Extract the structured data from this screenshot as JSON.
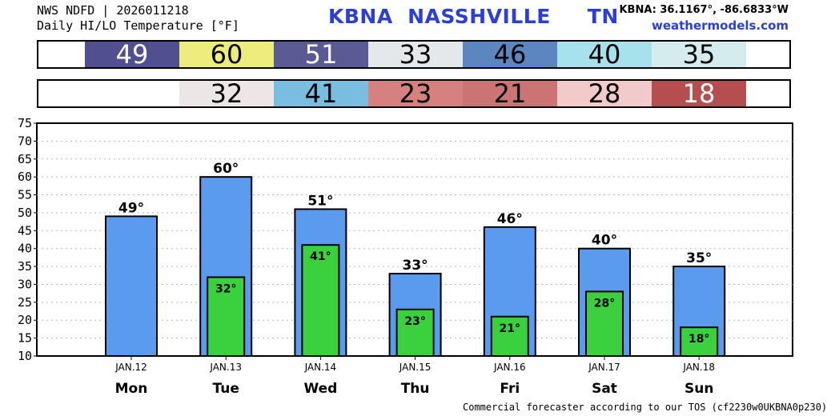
{
  "header": {
    "line1": "NWS NDFD | 2026011218",
    "line2": "Daily HI/LO Temperature [°F]",
    "station_title": "KBNA  NASSHVILLE     TN",
    "coords": "KBNA: 36.1167°, -86.6833°W",
    "site": "weathermodels.com"
  },
  "footer": "Commercial forecaster according to our TOS (cf2230w0UKBNA0p230)",
  "hi_strip": [
    {
      "text": "49",
      "bg": "#505090",
      "fg": "#ffffff"
    },
    {
      "text": "60",
      "bg": "#eded7e",
      "fg": "#000000"
    },
    {
      "text": "51",
      "bg": "#5a5a94",
      "fg": "#ffffff"
    },
    {
      "text": "33",
      "bg": "#e4e8ea",
      "fg": "#000000"
    },
    {
      "text": "46",
      "bg": "#5c86bf",
      "fg": "#000000"
    },
    {
      "text": "40",
      "bg": "#a6e1ec",
      "fg": "#000000"
    },
    {
      "text": "35",
      "bg": "#d4ecee",
      "fg": "#000000"
    }
  ],
  "lo_strip": [
    {
      "text": "",
      "bg": "#ffffff",
      "fg": "#000000"
    },
    {
      "text": "32",
      "bg": "#ece6e6",
      "fg": "#000000"
    },
    {
      "text": "41",
      "bg": "#79bde0",
      "fg": "#000000"
    },
    {
      "text": "23",
      "bg": "#d68080",
      "fg": "#000000"
    },
    {
      "text": "21",
      "bg": "#cc7474",
      "fg": "#000000"
    },
    {
      "text": "28",
      "bg": "#f2caca",
      "fg": "#000000"
    },
    {
      "text": "18",
      "bg": "#b54e4e",
      "fg": "#ffffff"
    }
  ],
  "chart_data": {
    "type": "bar",
    "categories": [
      "Mon",
      "Tue",
      "Wed",
      "Thu",
      "Fri",
      "Sat",
      "Sun"
    ],
    "dates": [
      "JAN.12",
      "JAN.13",
      "JAN.14",
      "JAN.15",
      "JAN.16",
      "JAN.17",
      "JAN.18"
    ],
    "series": [
      {
        "values": [
          49,
          60,
          51,
          33,
          46,
          40,
          35
        ],
        "color": "#5b9bef"
      },
      {
        "values": [
          null,
          32,
          41,
          23,
          21,
          28,
          18
        ],
        "color": "#3ad03e"
      }
    ],
    "hi_labels": [
      "49°",
      "60°",
      "51°",
      "33°",
      "46°",
      "40°",
      "35°"
    ],
    "lo_labels": [
      "",
      "32°",
      "41°",
      "23°",
      "21°",
      "28°",
      "18°"
    ],
    "ylim": [
      10,
      75
    ],
    "yticks": [
      "10",
      "15",
      "20",
      "25",
      "30",
      "35",
      "40",
      "45",
      "50",
      "55",
      "60",
      "65",
      "70",
      "75"
    ],
    "grid": true
  }
}
